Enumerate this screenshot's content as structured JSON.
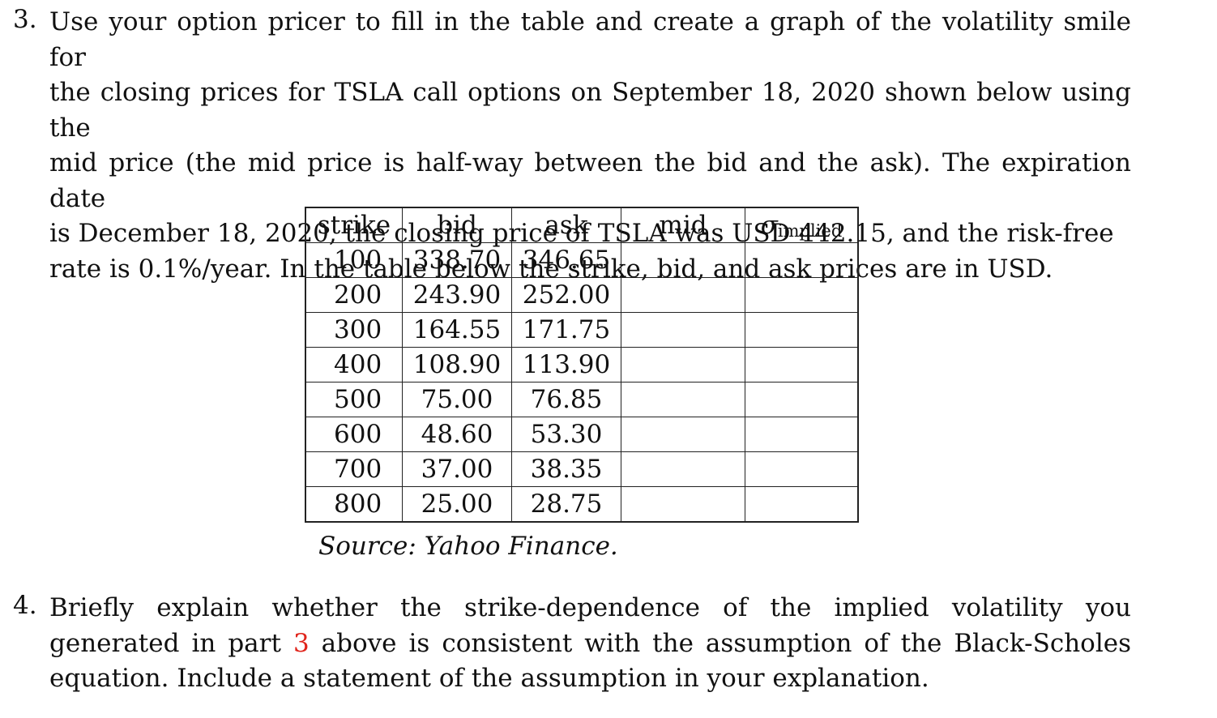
{
  "q3": {
    "number": "3.",
    "lines": [
      "Use your option pricer to fill in the table and create a graph of the volatility smile for",
      "the closing prices for TSLA call options on September 18, 2020 shown below using the",
      "mid price (the mid price is half-way between the bid and the ask). The expiration date",
      "is December 18, 2020, the closing price of TSLA was USD 442.15, and the risk-free",
      "rate is 0.1%/year. In the table below the strike, bid, and ask prices are in USD."
    ]
  },
  "table": {
    "headers": {
      "strike": "strike",
      "bid": "bid",
      "ask": "ask",
      "mid": "mid",
      "sigma": "σ",
      "sigma_sub": "implied"
    },
    "rows": [
      {
        "strike": "100",
        "bid": "338.70",
        "ask": "346.65",
        "mid": "",
        "iv": ""
      },
      {
        "strike": "200",
        "bid": "243.90",
        "ask": "252.00",
        "mid": "",
        "iv": ""
      },
      {
        "strike": "300",
        "bid": "164.55",
        "ask": "171.75",
        "mid": "",
        "iv": ""
      },
      {
        "strike": "400",
        "bid": "108.90",
        "ask": "113.90",
        "mid": "",
        "iv": ""
      },
      {
        "strike": "500",
        "bid": "75.00",
        "ask": "76.85",
        "mid": "",
        "iv": ""
      },
      {
        "strike": "600",
        "bid": "48.60",
        "ask": "53.30",
        "mid": "",
        "iv": ""
      },
      {
        "strike": "700",
        "bid": "37.00",
        "ask": "38.35",
        "mid": "",
        "iv": ""
      },
      {
        "strike": "800",
        "bid": "25.00",
        "ask": "28.75",
        "mid": "",
        "iv": ""
      }
    ],
    "source": "Source: Yahoo Finance."
  },
  "q4": {
    "number": "4.",
    "text_before_ref": "Briefly explain whether the strike-dependence of the implied volatility you generated in part ",
    "ref": "3",
    "text_after_ref": " above is consistent with the assumption of the Black-Scholes equation. Include a statement of the assumption in your explanation."
  },
  "colors": {
    "reference_link": "#e0241b"
  }
}
